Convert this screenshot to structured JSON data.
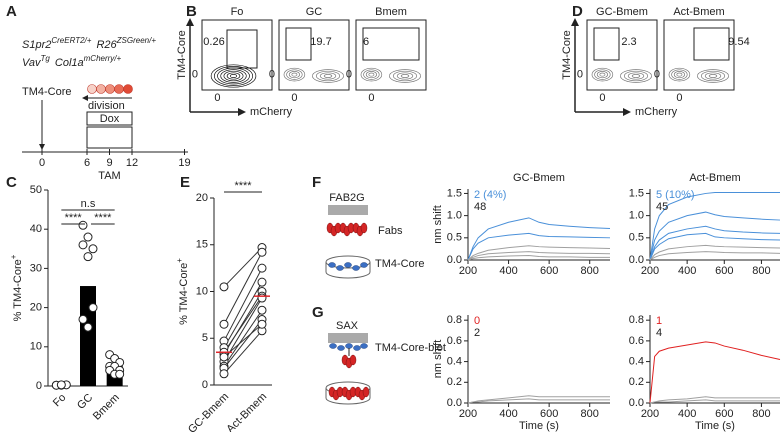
{
  "letters": [
    "A",
    "B",
    "C",
    "D",
    "E",
    "F",
    "G"
  ],
  "panel_a": {
    "genotype_line1": [
      {
        "text": "S1pr2",
        "sup": "CreERT2/+"
      },
      {
        "text": "R26",
        "sup": "ZSGreen/+"
      }
    ],
    "genotype_line2": [
      {
        "text": "Vav",
        "sup": "Tg"
      },
      {
        "text": "Col1a",
        "sup": "mCherry/+"
      }
    ],
    "injection": "TM4-Core",
    "division": "division",
    "dox": "Dox",
    "tam": "TAM",
    "days": [
      0,
      6,
      9,
      12,
      19
    ]
  },
  "flow": [
    {
      "x_label": "mCherry",
      "y_label": "TM4-Core",
      "zero": "0",
      "plots": [
        {
          "title": "Fo",
          "gate": 0.26
        },
        {
          "title": "GC",
          "gate": 19.7
        },
        {
          "title": "Bmem",
          "gate": 6
        }
      ]
    },
    {
      "x_label": "mCherry",
      "y_label": "TM4-Core",
      "zero": "0",
      "plots": [
        {
          "title": "GC-Bmem",
          "gate": 2.3
        },
        {
          "title": "Act-Bmem",
          "gate": 9.54
        }
      ]
    }
  ],
  "diagrams": [
    {
      "surface": "FAB2G",
      "analyte": "Fabs",
      "ligand": "TM4-Core"
    },
    {
      "surface": "SAX",
      "ligand": "TM4-Core-biot"
    }
  ],
  "chart_data": [
    {
      "type": "bar",
      "categories": [
        "Fo",
        "GC",
        "Bmem"
      ],
      "values": [
        0.3,
        25.5,
        5.8
      ],
      "color": "#000000",
      "points": [
        [
          0.2,
          0.2,
          0.3,
          0.2,
          0.3
        ],
        [
          41,
          38,
          35,
          36,
          33,
          20,
          17,
          15
        ],
        [
          8,
          7,
          6,
          5,
          5,
          4,
          4,
          3,
          3
        ]
      ],
      "ylim": [
        0,
        50
      ],
      "yticks": [
        0,
        10,
        20,
        30,
        40,
        50
      ],
      "y_label": {
        "text": "% TM4-Core",
        "sup": "+"
      },
      "annotations": [
        "n.s",
        "****",
        "****"
      ]
    },
    {
      "type": "paired",
      "categories": [
        "GC-Bmem",
        "Act-Bmem"
      ],
      "values": [
        [
          10.5,
          6.5,
          4.7,
          4,
          3.3,
          3.5,
          2.5,
          2,
          1.8,
          1.2,
          3
        ],
        [
          14.7,
          14.2,
          12.5,
          11,
          10,
          9.5,
          9.3,
          8,
          7,
          5.8,
          6.5
        ]
      ],
      "medians": [
        3.5,
        9.5
      ],
      "median_color": "#e0262b",
      "ylim": [
        0,
        20
      ],
      "yticks": [
        0,
        5,
        10,
        15,
        20
      ],
      "y_label": {
        "text": "% TM4-Core",
        "sup": "+"
      },
      "annotations": [
        "****"
      ]
    },
    {
      "type": "line",
      "title": "GC-Bmem",
      "x": [
        200,
        225,
        250,
        300,
        400,
        500,
        550,
        600,
        700,
        800,
        900
      ],
      "xlim": [
        200,
        900
      ],
      "xticks": [
        200,
        400,
        600,
        800
      ],
      "ylim": [
        0,
        1.6
      ],
      "yticks": [
        {
          "value": 0,
          "label": "0.0"
        },
        0.5,
        {
          "value": 1,
          "label": "1.0"
        },
        1.5
      ],
      "y_label": "nm shift",
      "annotations": [
        {
          "text": "2 (4%)",
          "color": "#4a90d9"
        },
        {
          "text": "48",
          "color": "#222222"
        }
      ],
      "series": [
        {
          "color": "#4a90d9",
          "values": [
            0,
            0.3,
            0.5,
            0.7,
            0.85,
            0.95,
            0.85,
            0.8,
            0.76,
            0.73,
            0.71
          ]
        },
        {
          "color": "#4a90d9",
          "values": [
            0,
            0.25,
            0.38,
            0.5,
            0.56,
            0.6,
            0.55,
            0.53,
            0.52,
            0.51,
            0.5
          ]
        },
        {
          "color": "#a0a0a0",
          "values": [
            0,
            0.1,
            0.15,
            0.22,
            0.28,
            0.32,
            0.3,
            0.29,
            0.28,
            0.27,
            0.26
          ]
        },
        {
          "color": "#a0a0a0",
          "values": [
            0,
            0.06,
            0.1,
            0.14,
            0.17,
            0.19,
            0.17,
            0.16,
            0.15,
            0.15,
            0.14
          ]
        },
        {
          "color": "#a0a0a0",
          "values": [
            0,
            0.03,
            0.05,
            0.07,
            0.09,
            0.1,
            0.08,
            0.07,
            0.07,
            0.06,
            0.06
          ]
        }
      ]
    },
    {
      "type": "line",
      "title": "Act-Bmem",
      "x": [
        200,
        225,
        250,
        300,
        400,
        500,
        550,
        600,
        700,
        800,
        900
      ],
      "xlim": [
        200,
        900
      ],
      "xticks": [
        200,
        400,
        600,
        800
      ],
      "ylim": [
        0,
        1.6
      ],
      "yticks": [
        {
          "value": 0,
          "label": "0.0"
        },
        0.5,
        {
          "value": 1,
          "label": "1.0"
        },
        1.5
      ],
      "annotations": [
        {
          "text": "5 (10%)",
          "color": "#4a90d9"
        },
        {
          "text": "45",
          "color": "#222222"
        }
      ],
      "series": [
        {
          "color": "#4a90d9",
          "values": [
            0,
            0.7,
            1.0,
            1.25,
            1.42,
            1.5,
            1.52,
            1.52,
            1.52,
            1.52,
            1.52
          ]
        },
        {
          "color": "#4a90d9",
          "values": [
            0,
            0.45,
            0.65,
            0.85,
            1.0,
            1.08,
            1.02,
            0.98,
            0.95,
            0.92,
            0.9
          ]
        },
        {
          "color": "#4a90d9",
          "values": [
            0,
            0.3,
            0.45,
            0.6,
            0.7,
            0.76,
            0.7,
            0.66,
            0.63,
            0.61,
            0.6
          ]
        },
        {
          "color": "#4a90d9",
          "values": [
            0,
            0.25,
            0.35,
            0.48,
            0.57,
            0.6,
            0.52,
            0.5,
            0.48,
            0.46,
            0.45
          ]
        },
        {
          "color": "#a0a0a0",
          "values": [
            0,
            0.12,
            0.18,
            0.25,
            0.3,
            0.33,
            0.31,
            0.3,
            0.29,
            0.28,
            0.27
          ]
        },
        {
          "color": "#a0a0a0",
          "values": [
            0,
            0.06,
            0.1,
            0.14,
            0.17,
            0.19,
            0.18,
            0.17,
            0.16,
            0.16,
            0.15
          ]
        }
      ]
    },
    {
      "type": "line",
      "x": [
        200,
        225,
        250,
        300,
        400,
        500,
        550,
        600,
        700,
        800,
        900
      ],
      "xlim": [
        200,
        900
      ],
      "xticks": [
        200,
        400,
        600,
        800
      ],
      "x_label": "Time (s)",
      "ylim": [
        0,
        0.85
      ],
      "yticks": [
        {
          "value": 0,
          "label": "0.0"
        },
        0.2,
        0.4,
        0.6,
        0.8
      ],
      "y_label": "nm shift",
      "annotations": [
        {
          "text": "0",
          "color": "#e02020"
        },
        {
          "text": "2",
          "color": "#222222"
        }
      ],
      "series": [
        {
          "color": "#a0a0a0",
          "values": [
            0,
            0.01,
            0.02,
            0.03,
            0.05,
            0.07,
            0.06,
            0.06,
            0.06,
            0.06,
            0.06
          ]
        },
        {
          "color": "#a0a0a0",
          "values": [
            0,
            0.01,
            0.01,
            0.02,
            0.03,
            0.04,
            0.03,
            0.03,
            0.03,
            0.03,
            0.03
          ]
        }
      ]
    },
    {
      "type": "line",
      "x": [
        200,
        225,
        250,
        300,
        400,
        500,
        550,
        600,
        700,
        800,
        900
      ],
      "xlim": [
        200,
        900
      ],
      "xticks": [
        200,
        400,
        600,
        800
      ],
      "x_label": "Time (s)",
      "ylim": [
        0,
        0.85
      ],
      "yticks": [
        {
          "value": 0,
          "label": "0.0"
        },
        0.2,
        0.4,
        0.6,
        0.8
      ],
      "annotations": [
        {
          "text": "1",
          "color": "#e02020"
        },
        {
          "text": "4",
          "color": "#222222"
        }
      ],
      "series": [
        {
          "color": "#e02020",
          "values": [
            0,
            0.45,
            0.5,
            0.53,
            0.56,
            0.59,
            0.58,
            0.55,
            0.51,
            0.46,
            0.42
          ]
        },
        {
          "color": "#a0a0a0",
          "values": [
            0,
            0.01,
            0.02,
            0.03,
            0.04,
            0.06,
            0.05,
            0.05,
            0.05,
            0.05,
            0.05
          ]
        },
        {
          "color": "#a0a0a0",
          "values": [
            0,
            0.01,
            0.01,
            0.01,
            0.02,
            0.03,
            0.02,
            0.02,
            0.02,
            0.02,
            0.02
          ]
        }
      ]
    }
  ]
}
